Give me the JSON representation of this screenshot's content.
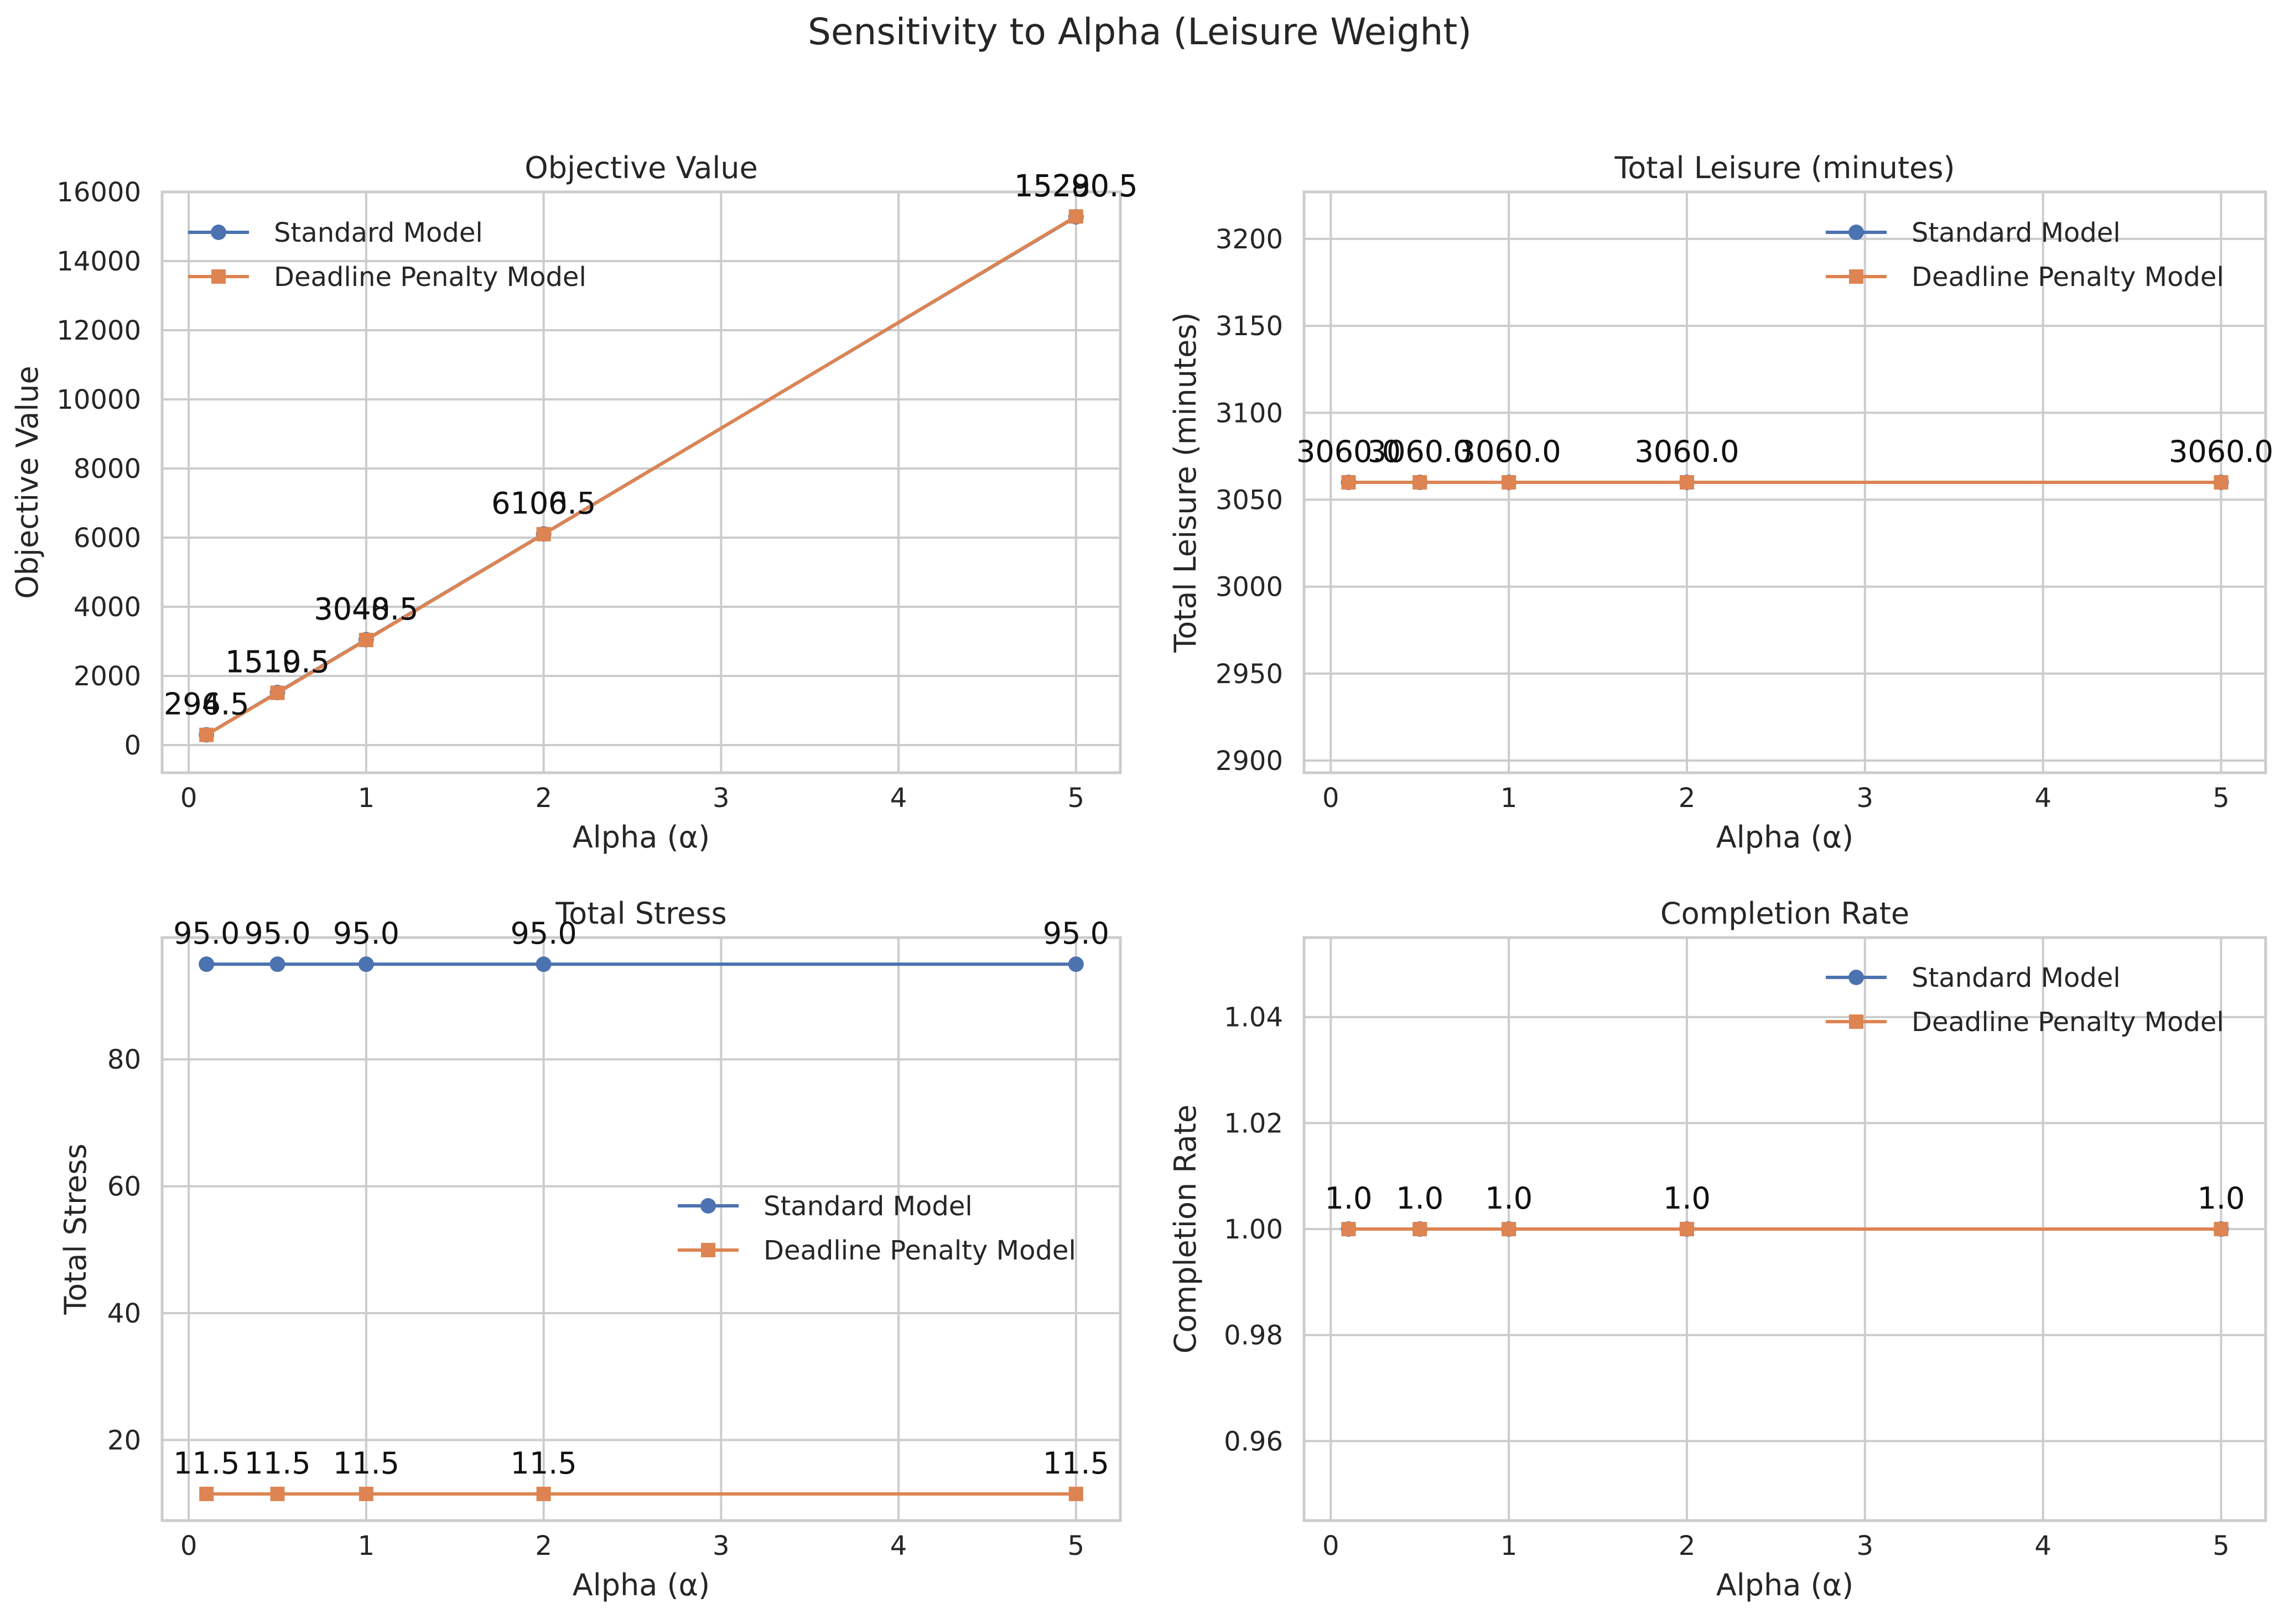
{
  "suptitle": "Sensitivity to Alpha (Leisure Weight)",
  "colors": {
    "standard": "#4c72b0",
    "penalty": "#dd8452"
  },
  "chart_data": [
    {
      "type": "line",
      "title": "Objective Value",
      "xlabel": "Alpha (α)",
      "ylabel": "Objective Value",
      "x": [
        0.1,
        0.5,
        1,
        2,
        5
      ],
      "xlim": [
        -0.15,
        5.25
      ],
      "ylim": [
        -800,
        16000
      ],
      "xticks": [
        0,
        1,
        2,
        3,
        4,
        5
      ],
      "xtick_labels": [
        "0",
        "1",
        "2",
        "3",
        "4",
        "5"
      ],
      "yticks": [
        0,
        2000,
        4000,
        6000,
        8000,
        10000,
        12000,
        14000,
        16000
      ],
      "ytick_labels": [
        "0",
        "2000",
        "4000",
        "6000",
        "8000",
        "10000",
        "12000",
        "14000",
        "16000"
      ],
      "legend": "upper-left",
      "grid": true,
      "series": [
        {
          "name": "Standard Model",
          "marker": "circle",
          "values": [
            296.5,
            1519.5,
            3048.5,
            6106.5,
            15280.5
          ],
          "labels": [
            "296.5",
            "1519.5",
            "3048.5",
            "6106.5",
            "15280.5"
          ]
        },
        {
          "name": "Deadline Penalty Model",
          "marker": "square",
          "values": [
            294.5,
            1510.5,
            3040.5,
            6100.5,
            15290.5
          ],
          "labels": [
            "294.5",
            "1510.5",
            "3040.5",
            "6100.5",
            "15290.5"
          ]
        }
      ]
    },
    {
      "type": "line",
      "title": "Total Leisure (minutes)",
      "xlabel": "Alpha (α)",
      "ylabel": "Total Leisure (minutes)",
      "x": [
        0.1,
        0.5,
        1,
        2,
        5
      ],
      "xlim": [
        -0.15,
        5.25
      ],
      "ylim": [
        2893,
        3227
      ],
      "xticks": [
        0,
        1,
        2,
        3,
        4,
        5
      ],
      "xtick_labels": [
        "0",
        "1",
        "2",
        "3",
        "4",
        "5"
      ],
      "yticks": [
        2900,
        2950,
        3000,
        3050,
        3100,
        3150,
        3200
      ],
      "ytick_labels": [
        "2900",
        "2950",
        "3000",
        "3050",
        "3100",
        "3150",
        "3200"
      ],
      "legend": "upper-right",
      "grid": true,
      "series": [
        {
          "name": "Standard Model",
          "marker": "circle",
          "values": [
            3060.0,
            3060.0,
            3060.0,
            3060.0,
            3060.0
          ],
          "labels": [
            "3060.0",
            "3060.0",
            "3060.0",
            "3060.0",
            "3060.0"
          ]
        },
        {
          "name": "Deadline Penalty Model",
          "marker": "square",
          "values": [
            3060.0,
            3060.0,
            3060.0,
            3060.0,
            3060.0
          ],
          "labels": [
            "3060.0",
            "3060.0",
            "3060.0",
            "3060.0",
            "3060.0"
          ]
        }
      ]
    },
    {
      "type": "line",
      "title": "Total Stress",
      "xlabel": "Alpha (α)",
      "ylabel": "Total Stress",
      "x": [
        0.1,
        0.5,
        1,
        2,
        5
      ],
      "xlim": [
        -0.15,
        5.25
      ],
      "ylim": [
        7.3,
        99.2
      ],
      "xticks": [
        0,
        1,
        2,
        3,
        4,
        5
      ],
      "xtick_labels": [
        "0",
        "1",
        "2",
        "3",
        "4",
        "5"
      ],
      "yticks": [
        20,
        40,
        60,
        80
      ],
      "ytick_labels": [
        "20",
        "40",
        "60",
        "80"
      ],
      "legend": "center-right",
      "grid": true,
      "series": [
        {
          "name": "Standard Model",
          "marker": "circle",
          "values": [
            95.0,
            95.0,
            95.0,
            95.0,
            95.0
          ],
          "labels": [
            "95.0",
            "95.0",
            "95.0",
            "95.0",
            "95.0"
          ]
        },
        {
          "name": "Deadline Penalty Model",
          "marker": "square",
          "values": [
            11.5,
            11.5,
            11.5,
            11.5,
            11.5
          ],
          "labels": [
            "11.5",
            "11.5",
            "11.5",
            "11.5",
            "11.5"
          ]
        }
      ]
    },
    {
      "type": "line",
      "title": "Completion Rate",
      "xlabel": "Alpha (α)",
      "ylabel": "Completion Rate",
      "x": [
        0.1,
        0.5,
        1,
        2,
        5
      ],
      "xlim": [
        -0.15,
        5.25
      ],
      "ylim": [
        0.945,
        1.055
      ],
      "xticks": [
        0,
        1,
        2,
        3,
        4,
        5
      ],
      "xtick_labels": [
        "0",
        "1",
        "2",
        "3",
        "4",
        "5"
      ],
      "yticks": [
        0.96,
        0.98,
        1.0,
        1.02,
        1.04
      ],
      "ytick_labels": [
        "0.96",
        "0.98",
        "1.00",
        "1.02",
        "1.04"
      ],
      "legend": "upper-right",
      "grid": true,
      "series": [
        {
          "name": "Standard Model",
          "marker": "circle",
          "values": [
            1.0,
            1.0,
            1.0,
            1.0,
            1.0
          ],
          "labels": [
            "1.0",
            "1.0",
            "1.0",
            "1.0",
            "1.0"
          ]
        },
        {
          "name": "Deadline Penalty Model",
          "marker": "square",
          "values": [
            1.0,
            1.0,
            1.0,
            1.0,
            1.0
          ],
          "labels": [
            "1.0",
            "1.0",
            "1.0",
            "1.0",
            "1.0"
          ]
        }
      ]
    }
  ]
}
